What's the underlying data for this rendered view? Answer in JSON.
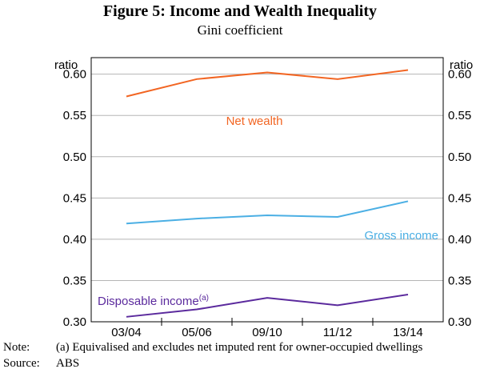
{
  "chart_data": {
    "type": "line",
    "title": "Figure 5: Income and Wealth Inequality",
    "subtitle": "Gini coefficient",
    "ylabel_left": "ratio",
    "ylabel_right": "ratio",
    "categories": [
      "03/04",
      "05/06",
      "09/10",
      "11/12",
      "13/14"
    ],
    "ylim": [
      0.3,
      0.62
    ],
    "yticks": [
      "0.60",
      "0.55",
      "0.50",
      "0.45",
      "0.40",
      "0.35",
      "0.30"
    ],
    "grid": true,
    "series": [
      {
        "name": "Net wealth",
        "color": "#F26522",
        "values": [
          0.573,
          0.594,
          0.602,
          0.594,
          0.605
        ]
      },
      {
        "name": "Gross income",
        "color": "#4BAFE4",
        "values": [
          0.419,
          0.425,
          0.429,
          0.427,
          0.446
        ]
      },
      {
        "name": "Disposable income",
        "superscript": "(a)",
        "color": "#5B2A9D",
        "values": [
          0.306,
          0.315,
          0.329,
          0.32,
          0.333
        ]
      }
    ]
  },
  "notes": {
    "note_key": "Note:",
    "note_text": "(a) Equivalised and excludes net imputed rent for owner-occupied dwellings",
    "source_key": "Source:",
    "source_text": "ABS"
  }
}
